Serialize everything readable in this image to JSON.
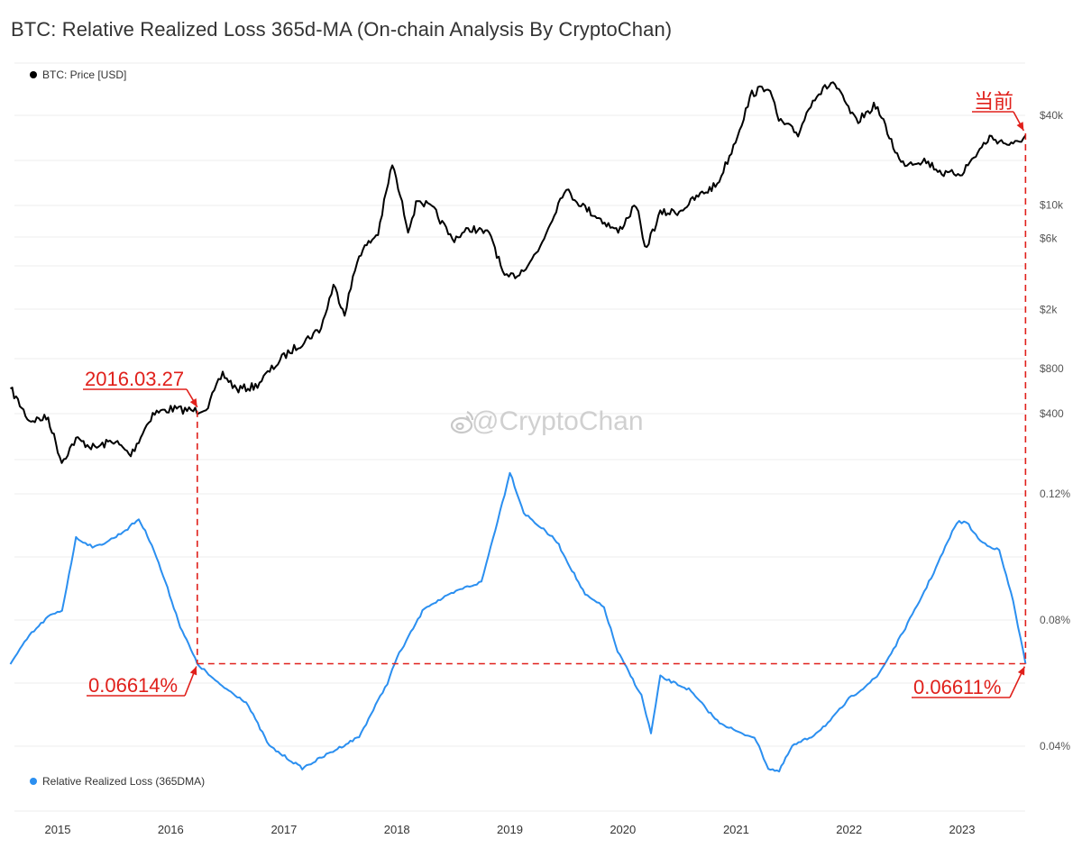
{
  "title": "BTC: Relative Realized Loss 365d-MA (On-chain Analysis By CryptoChan)",
  "watermark": "@CryptoChan",
  "colors": {
    "price": "#000000",
    "loss": "#2b8ff0",
    "annotation": "#e0201b",
    "grid": "#ececec",
    "text": "#333333"
  },
  "chart_data": [
    {
      "type": "line",
      "name": "BTC: Price [USD]",
      "legend": "BTC: Price [USD]",
      "legend_position": "top-left",
      "y_scale": "log",
      "y_ticks": [
        {
          "value": 400,
          "label": "$400"
        },
        {
          "value": 800,
          "label": "$800"
        },
        {
          "value": 2000,
          "label": "$2k"
        },
        {
          "value": 6000,
          "label": "$6k"
        },
        {
          "value": 10000,
          "label": "$10k"
        },
        {
          "value": 40000,
          "label": "$40k"
        }
      ],
      "points": [
        [
          "2014-08-01",
          590
        ],
        [
          "2014-10-01",
          360
        ],
        [
          "2014-12-01",
          375
        ],
        [
          "2015-01-14",
          190
        ],
        [
          "2015-03-01",
          270
        ],
        [
          "2015-05-01",
          235
        ],
        [
          "2015-07-01",
          265
        ],
        [
          "2015-08-25",
          210
        ],
        [
          "2015-11-04",
          400
        ],
        [
          "2016-01-01",
          430
        ],
        [
          "2016-03-27",
          418
        ],
        [
          "2016-05-01",
          450
        ],
        [
          "2016-06-17",
          740
        ],
        [
          "2016-08-01",
          580
        ],
        [
          "2016-10-01",
          610
        ],
        [
          "2017-01-01",
          970
        ],
        [
          "2017-03-01",
          1200
        ],
        [
          "2017-05-01",
          1500
        ],
        [
          "2017-06-10",
          2900
        ],
        [
          "2017-07-16",
          1900
        ],
        [
          "2017-09-01",
          4700
        ],
        [
          "2017-11-01",
          6500
        ],
        [
          "2017-12-17",
          19000
        ],
        [
          "2018-02-06",
          6900
        ],
        [
          "2018-03-10",
          11000
        ],
        [
          "2018-05-01",
          9200
        ],
        [
          "2018-06-29",
          5900
        ],
        [
          "2018-09-01",
          7000
        ],
        [
          "2018-11-01",
          6300
        ],
        [
          "2018-12-15",
          3200
        ],
        [
          "2019-02-01",
          3500
        ],
        [
          "2019-04-02",
          4900
        ],
        [
          "2019-06-26",
          12800
        ],
        [
          "2019-09-01",
          9600
        ],
        [
          "2019-12-17",
          6600
        ],
        [
          "2020-02-13",
          10200
        ],
        [
          "2020-03-12",
          5000
        ],
        [
          "2020-05-01",
          8800
        ],
        [
          "2020-07-01",
          9100
        ],
        [
          "2020-09-01",
          11500
        ],
        [
          "2020-11-01",
          13800
        ],
        [
          "2020-12-17",
          23000
        ],
        [
          "2021-02-21",
          56000
        ],
        [
          "2021-04-14",
          63000
        ],
        [
          "2021-05-19",
          37000
        ],
        [
          "2021-07-20",
          30000
        ],
        [
          "2021-09-06",
          52000
        ],
        [
          "2021-11-10",
          67000
        ],
        [
          "2022-01-24",
          36000
        ],
        [
          "2022-03-28",
          47000
        ],
        [
          "2022-06-18",
          19000
        ],
        [
          "2022-09-01",
          20000
        ],
        [
          "2022-11-09",
          16000
        ],
        [
          "2023-01-01",
          16600
        ],
        [
          "2023-03-31",
          28500
        ],
        [
          "2023-06-15",
          25000
        ],
        [
          "2023-07-25",
          29400
        ]
      ]
    },
    {
      "type": "line",
      "name": "Relative Realized Loss (365DMA)",
      "legend": "Relative Realized Loss (365DMA)",
      "legend_position": "bottom-left",
      "y_unit": "%",
      "y_ticks": [
        {
          "value": 0.04,
          "label": "0.04%"
        },
        {
          "value": 0.08,
          "label": "0.08%"
        },
        {
          "value": 0.12,
          "label": "0.12%"
        }
      ],
      "points": [
        [
          "2014-08-01",
          0.066
        ],
        [
          "2014-10-01",
          0.075
        ],
        [
          "2014-12-01",
          0.081
        ],
        [
          "2015-01-15",
          0.083
        ],
        [
          "2015-03-01",
          0.106
        ],
        [
          "2015-05-01",
          0.103
        ],
        [
          "2015-07-01",
          0.106
        ],
        [
          "2015-08-15",
          0.109
        ],
        [
          "2015-09-20",
          0.112
        ],
        [
          "2015-11-01",
          0.104
        ],
        [
          "2015-12-15",
          0.092
        ],
        [
          "2016-02-01",
          0.078
        ],
        [
          "2016-03-27",
          0.06614
        ],
        [
          "2016-06-01",
          0.06
        ],
        [
          "2016-09-01",
          0.054
        ],
        [
          "2016-11-15",
          0.04
        ],
        [
          "2017-03-01",
          0.033
        ],
        [
          "2017-06-01",
          0.038
        ],
        [
          "2017-09-01",
          0.043
        ],
        [
          "2017-12-01",
          0.06
        ],
        [
          "2018-01-01",
          0.068
        ],
        [
          "2018-04-01",
          0.084
        ],
        [
          "2018-08-01",
          0.09
        ],
        [
          "2018-10-01",
          0.092
        ],
        [
          "2018-12-15",
          0.12
        ],
        [
          "2019-01-01",
          0.127
        ],
        [
          "2019-02-15",
          0.114
        ],
        [
          "2019-06-01",
          0.105
        ],
        [
          "2019-09-01",
          0.088
        ],
        [
          "2019-11-01",
          0.084
        ],
        [
          "2019-12-15",
          0.07
        ],
        [
          "2020-03-01",
          0.056
        ],
        [
          "2020-04-01",
          0.044
        ],
        [
          "2020-05-01",
          0.062
        ],
        [
          "2020-08-01",
          0.058
        ],
        [
          "2020-11-01",
          0.048
        ],
        [
          "2021-01-15",
          0.044
        ],
        [
          "2021-03-01",
          0.043
        ],
        [
          "2021-04-15",
          0.033
        ],
        [
          "2021-05-20",
          0.032
        ],
        [
          "2021-07-01",
          0.04
        ],
        [
          "2021-09-01",
          0.043
        ],
        [
          "2021-11-01",
          0.048
        ],
        [
          "2022-01-01",
          0.055
        ],
        [
          "2022-04-01",
          0.062
        ],
        [
          "2022-06-01",
          0.072
        ],
        [
          "2022-08-01",
          0.083
        ],
        [
          "2022-10-01",
          0.095
        ],
        [
          "2022-12-15",
          0.111
        ],
        [
          "2023-01-15",
          0.111
        ],
        [
          "2023-03-01",
          0.105
        ],
        [
          "2023-05-01",
          0.102
        ],
        [
          "2023-06-15",
          0.086
        ],
        [
          "2023-07-25",
          0.06611
        ]
      ]
    }
  ],
  "x_axis": {
    "type": "date",
    "ticks": [
      {
        "value": "2015-01-01",
        "label": "2015"
      },
      {
        "value": "2016-01-01",
        "label": "2016"
      },
      {
        "value": "2017-01-01",
        "label": "2017"
      },
      {
        "value": "2018-01-01",
        "label": "2018"
      },
      {
        "value": "2019-01-01",
        "label": "2019"
      },
      {
        "value": "2020-01-01",
        "label": "2020"
      },
      {
        "value": "2021-01-01",
        "label": "2021"
      },
      {
        "value": "2022-01-01",
        "label": "2022"
      },
      {
        "value": "2023-01-01",
        "label": "2023"
      }
    ]
  },
  "annotations": {
    "left_date": {
      "text": "2016.03.27",
      "date": "2016-03-27"
    },
    "left_value": {
      "text": "0.06614%",
      "value": 0.06614
    },
    "right_value": {
      "text": "0.06611%",
      "value": 0.06611
    },
    "current": {
      "text": "当前",
      "date": "2023-07-25"
    }
  }
}
